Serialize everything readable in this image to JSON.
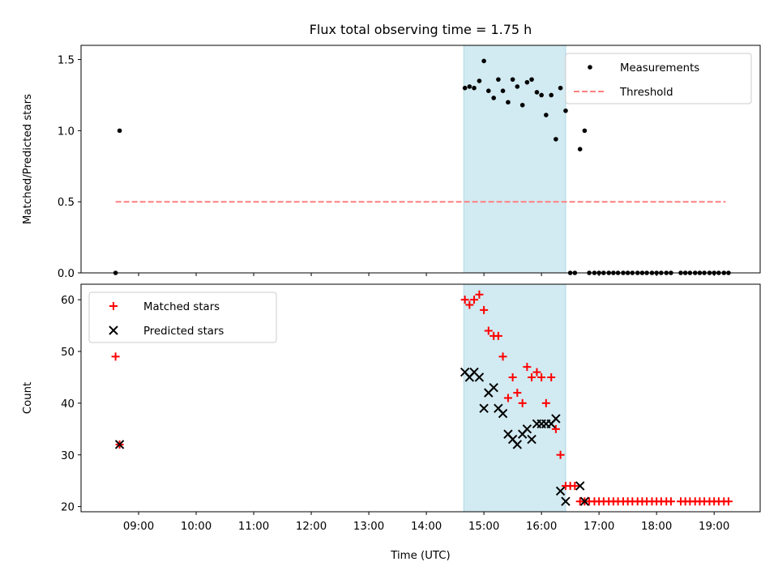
{
  "chart_data": {
    "type": "scatter",
    "title": "Flux total observing time = 1.75 h",
    "xlabel": "Time (UTC)",
    "x_ticks": [
      "09:00",
      "10:00",
      "11:00",
      "12:00",
      "13:00",
      "14:00",
      "15:00",
      "16:00",
      "17:00",
      "18:00",
      "19:00"
    ],
    "x_range_hours": [
      8.0,
      19.8
    ],
    "shaded_interval_hours": [
      14.65,
      16.42
    ],
    "shade_color": "#add8e6",
    "panels": [
      {
        "ylabel": "Matched/Predicted stars",
        "ylim": [
          0,
          1.6
        ],
        "yticks": [
          "0.0",
          "0.5",
          "1.0",
          "1.5"
        ],
        "legend": "top-right",
        "series": [
          {
            "name": "Measurements",
            "marker": "dot",
            "color": "#000000",
            "x": [
              8.6,
              8.67,
              14.67,
              14.75,
              14.83,
              14.92,
              15.0,
              15.08,
              15.17,
              15.25,
              15.33,
              15.42,
              15.5,
              15.58,
              15.67,
              15.75,
              15.83,
              15.92,
              16.0,
              16.08,
              16.17,
              16.25,
              16.33,
              16.42,
              16.5,
              16.58,
              16.67,
              16.75,
              16.83,
              16.92,
              17.0,
              17.08,
              17.17,
              17.25,
              17.33,
              17.42,
              17.5,
              17.58,
              17.67,
              17.75,
              17.83,
              17.92,
              18.0,
              18.08,
              18.17,
              18.25,
              18.42,
              18.5,
              18.58,
              18.67,
              18.75,
              18.83,
              18.92,
              19.0,
              19.08,
              19.17,
              19.25
            ],
            "y": [
              0.0,
              1.0,
              1.3,
              1.31,
              1.3,
              1.35,
              1.49,
              1.28,
              1.23,
              1.36,
              1.28,
              1.2,
              1.36,
              1.31,
              1.18,
              1.34,
              1.36,
              1.27,
              1.25,
              1.11,
              1.25,
              0.94,
              1.3,
              1.14,
              0.0,
              0.0,
              0.87,
              1.0,
              0.0,
              0.0,
              0.0,
              0.0,
              0.0,
              0.0,
              0.0,
              0.0,
              0.0,
              0.0,
              0.0,
              0.0,
              0.0,
              0.0,
              0.0,
              0.0,
              0.0,
              0.0,
              0.0,
              0.0,
              0.0,
              0.0,
              0.0,
              0.0,
              0.0,
              0.0,
              0.0,
              0.0,
              0.0
            ]
          },
          {
            "name": "Threshold",
            "marker": "dashed-line",
            "color": "#ff7f7f",
            "x": [
              8.6,
              19.2
            ],
            "y": [
              0.5,
              0.5
            ]
          }
        ]
      },
      {
        "ylabel": "Count",
        "ylim": [
          19,
          63
        ],
        "yticks": [
          "20",
          "30",
          "40",
          "50",
          "60"
        ],
        "legend": "top-left",
        "series": [
          {
            "name": "Matched stars",
            "marker": "plus",
            "color": "#ff0000",
            "x": [
              8.6,
              8.67,
              14.67,
              14.75,
              14.83,
              14.92,
              15.0,
              15.08,
              15.17,
              15.25,
              15.33,
              15.42,
              15.5,
              15.58,
              15.67,
              15.75,
              15.83,
              15.92,
              16.0,
              16.08,
              16.17,
              16.25,
              16.33,
              16.42,
              16.5,
              16.58,
              16.67,
              16.75,
              16.83,
              16.92,
              17.0,
              17.08,
              17.17,
              17.25,
              17.33,
              17.42,
              17.5,
              17.58,
              17.67,
              17.75,
              17.83,
              17.92,
              18.0,
              18.08,
              18.17,
              18.25,
              18.42,
              18.5,
              18.58,
              18.67,
              18.75,
              18.83,
              18.92,
              19.0,
              19.08,
              19.17,
              19.25
            ],
            "y": [
              49,
              32,
              60,
              59,
              60,
              61,
              58,
              54,
              53,
              53,
              49,
              41,
              45,
              42,
              40,
              47,
              45,
              46,
              45,
              40,
              45,
              35,
              30,
              24,
              24,
              24,
              21,
              21,
              21,
              21,
              21,
              21,
              21,
              21,
              21,
              21,
              21,
              21,
              21,
              21,
              21,
              21,
              21,
              21,
              21,
              21,
              21,
              21,
              21,
              21,
              21,
              21,
              21,
              21,
              21,
              21,
              21
            ]
          },
          {
            "name": "Predicted stars",
            "marker": "x",
            "color": "#000000",
            "x": [
              8.67,
              14.67,
              14.75,
              14.83,
              14.92,
              15.0,
              15.08,
              15.17,
              15.25,
              15.33,
              15.42,
              15.5,
              15.58,
              15.67,
              15.75,
              15.83,
              15.92,
              16.0,
              16.08,
              16.17,
              16.25,
              16.33,
              16.42,
              16.67,
              16.75
            ],
            "y": [
              32,
              46,
              45,
              46,
              45,
              39,
              42,
              43,
              39,
              38,
              34,
              33,
              32,
              34,
              35,
              33,
              36,
              36,
              36,
              36,
              37,
              23,
              21,
              24,
              21
            ]
          }
        ]
      }
    ]
  }
}
